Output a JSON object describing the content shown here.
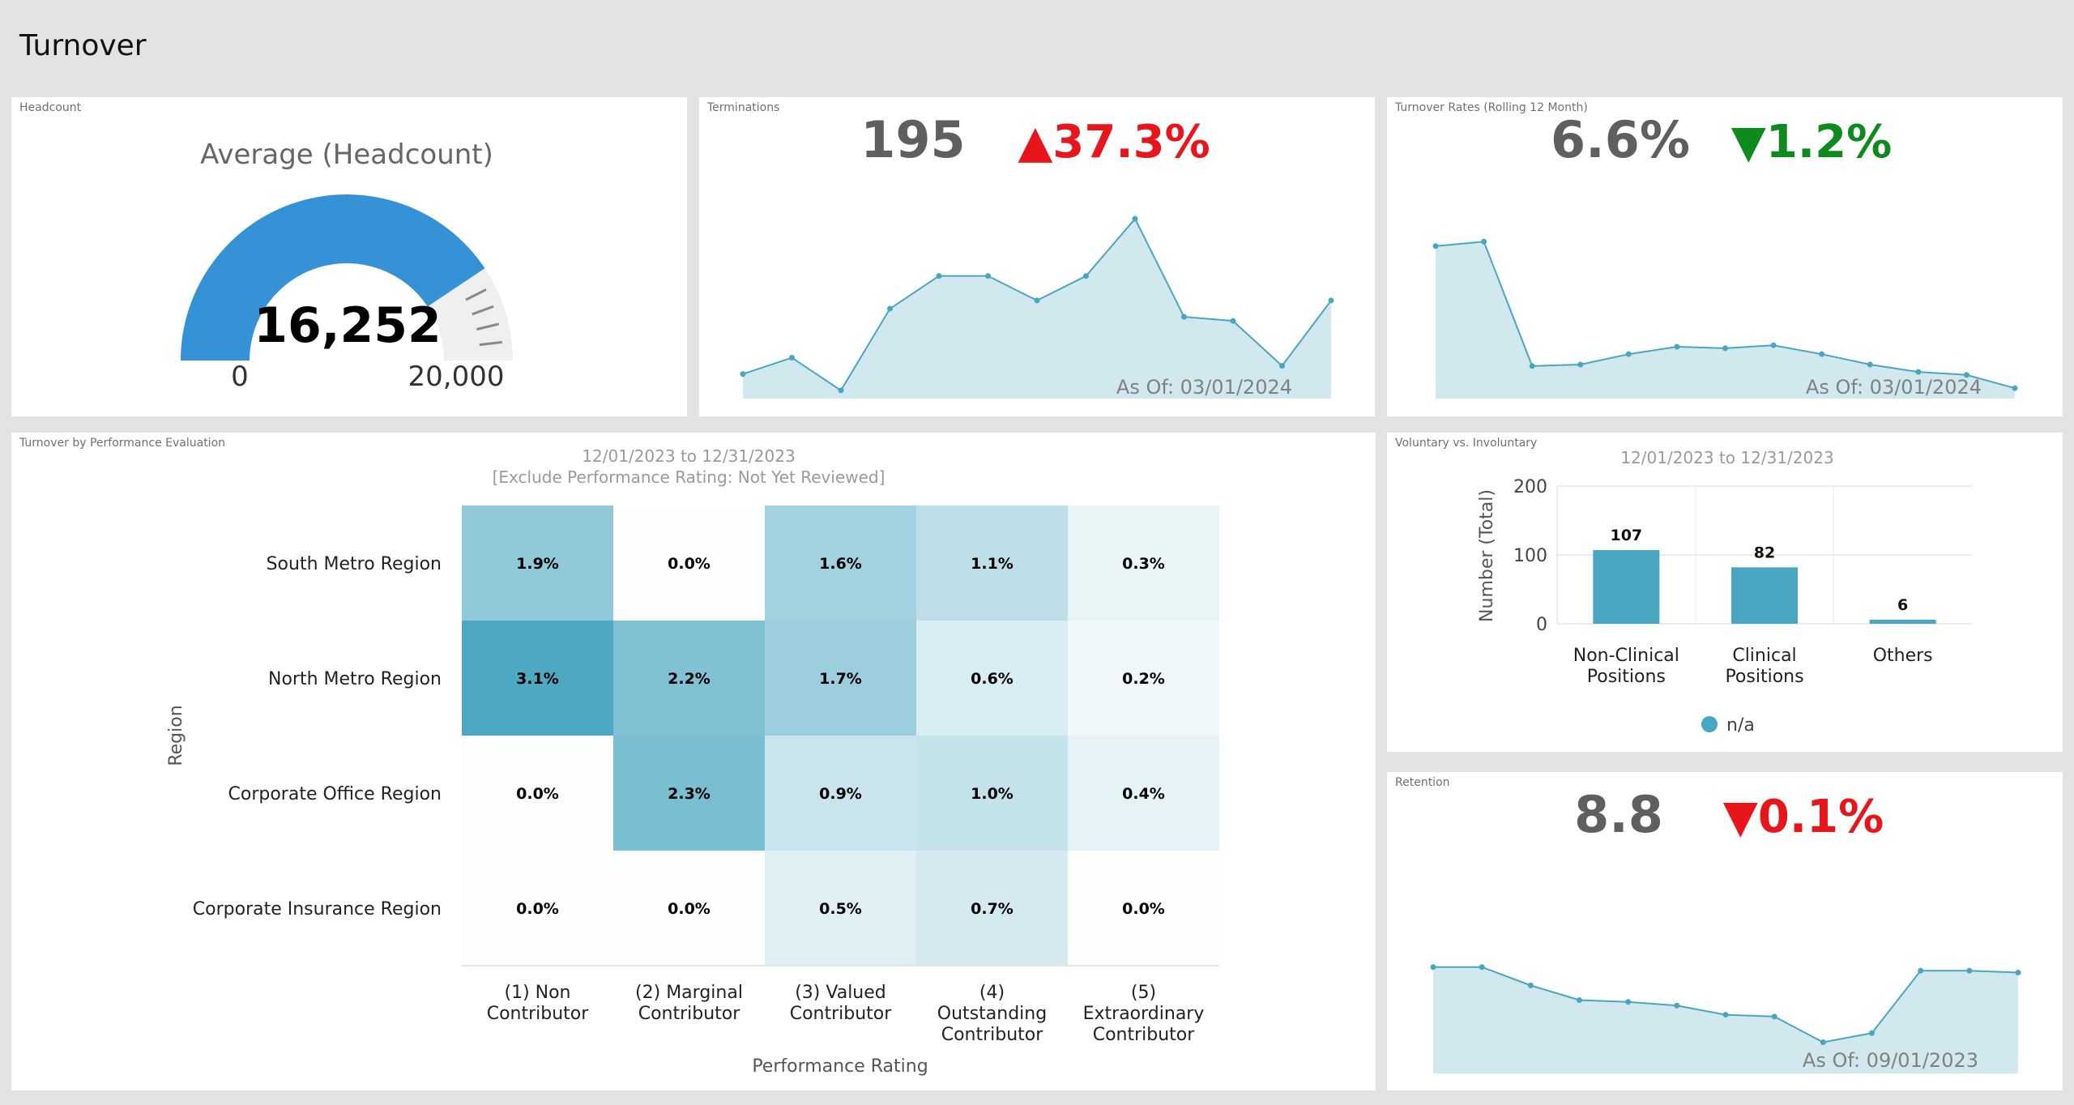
{
  "page": {
    "title": "Turnover"
  },
  "headcount": {
    "panel_title": "Headcount",
    "gauge_title": "Average (Headcount)",
    "value_label": "16,252",
    "min_label": "0",
    "max_label": "20,000",
    "value": 16252,
    "min": 0,
    "max": 20000,
    "color": "#3592d6"
  },
  "terminations": {
    "panel_title": "Terminations",
    "value": "195",
    "change": "▲37.3%",
    "change_color": "#e8161b",
    "as_of": "As Of: 03/01/2024"
  },
  "turnover_rates": {
    "panel_title": "Turnover Rates (Rolling 12 Month)",
    "value": "6.6%",
    "change": "▼1.2%",
    "change_color": "#0f8a1e",
    "as_of": "As Of: 03/01/2024"
  },
  "performance": {
    "panel_title": "Turnover by Performance Evaluation",
    "date_range": "12/01/2023 to 12/31/2023",
    "filter_note": "[Exclude Performance Rating: Not Yet Reviewed]",
    "ylabel": "Region",
    "xlabel": "Performance Rating"
  },
  "voluntary": {
    "panel_title": "Voluntary vs. Involuntary",
    "date_range": "12/01/2023 to 12/31/2023",
    "legend": "n/a"
  },
  "retention": {
    "panel_title": "Retention",
    "value": "8.8",
    "change": "▼0.1%",
    "change_color": "#e8161b",
    "as_of": "As Of: 09/01/2023"
  },
  "colors": {
    "accent": "#4aa6c0",
    "area": "#d2e8ef"
  },
  "chart_data": [
    {
      "id": "terminations",
      "type": "area",
      "values": [
        3,
        5,
        1,
        11,
        15,
        15,
        12,
        15,
        22,
        10,
        9.5,
        4,
        12
      ]
    },
    {
      "id": "turnover_rates",
      "type": "area",
      "values": [
        10.3,
        10.6,
        2.2,
        2.3,
        3.0,
        3.5,
        3.4,
        3.6,
        3.0,
        2.3,
        1.8,
        1.6,
        0.7
      ]
    },
    {
      "id": "heatmap",
      "type": "heatmap",
      "rows": [
        "South Metro Region",
        "North Metro Region",
        "Corporate Office Region",
        "Corporate Insurance Region"
      ],
      "columns": [
        "(1) Non Contributor",
        "(2) Marginal Contributor",
        "(3) Valued Contributor",
        "(4) Outstanding Contributor",
        "(5) Extraordinary Contributor"
      ],
      "values": [
        [
          1.9,
          0.0,
          1.6,
          1.1,
          0.3
        ],
        [
          3.1,
          2.2,
          1.7,
          0.6,
          0.2
        ],
        [
          0.0,
          2.3,
          0.9,
          1.0,
          0.4
        ],
        [
          0.0,
          0.0,
          0.5,
          0.7,
          0.0
        ]
      ],
      "labels": [
        [
          "1.9%",
          "0.0%",
          "1.6%",
          "1.1%",
          "0.3%"
        ],
        [
          "3.1%",
          "2.2%",
          "1.7%",
          "0.6%",
          "0.2%"
        ],
        [
          "0.0%",
          "2.3%",
          "0.9%",
          "1.0%",
          "0.4%"
        ],
        [
          "0.0%",
          "0.0%",
          "0.5%",
          "0.7%",
          "0.0%"
        ]
      ],
      "xlabel": "Performance Rating",
      "ylabel": "Region",
      "max": 3.1
    },
    {
      "id": "voluntary",
      "type": "bar",
      "categories": [
        "Non-Clinical Positions",
        "Clinical Positions",
        "Others"
      ],
      "values": [
        107,
        82,
        6
      ],
      "value_labels": [
        "107",
        "82",
        "6"
      ],
      "ylabel": "Number (Total)",
      "ylim": [
        0,
        200
      ],
      "yticks": [
        "0",
        "100",
        "200"
      ],
      "legend": "n/a"
    },
    {
      "id": "retention",
      "type": "area",
      "values": [
        8.9,
        8.9,
        8.4,
        8.0,
        7.95,
        7.85,
        7.6,
        7.55,
        6.85,
        7.1,
        8.8,
        8.8,
        8.75
      ]
    }
  ]
}
